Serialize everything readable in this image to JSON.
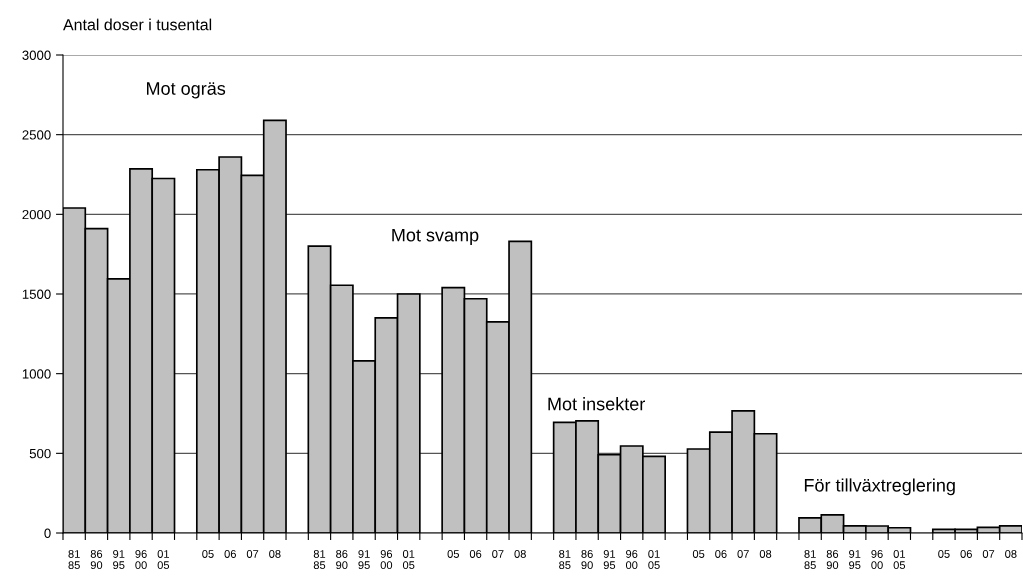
{
  "chart_data": {
    "type": "bar",
    "ylabel": "Antal doser i tusental",
    "categories": [
      "81\n85",
      "86\n90",
      "91\n95",
      "96\n00",
      "01\n05",
      null,
      "05",
      "06",
      "07",
      "08",
      null,
      "81\n85",
      "86\n90",
      "91\n95",
      "96\n00",
      "01\n05",
      null,
      "05",
      "06",
      "07",
      "08",
      null,
      "81\n85",
      "86\n90",
      "91\n95",
      "96\n00",
      "01\n05",
      null,
      "05",
      "06",
      "07",
      "08",
      null,
      "81\n85",
      "86\n90",
      "91\n95",
      "96\n00",
      "01\n05",
      null,
      "05",
      "06",
      "07",
      "08"
    ],
    "values": [
      2040,
      1910,
      1595,
      2285,
      2225,
      null,
      2280,
      2360,
      2245,
      2590,
      null,
      1800,
      1555,
      1080,
      1350,
      1500,
      null,
      1540,
      1470,
      1325,
      1830,
      null,
      694,
      704,
      491,
      546,
      481,
      null,
      527,
      633,
      766,
      623,
      null,
      95,
      114,
      45,
      44,
      33,
      null,
      23,
      23,
      35,
      45
    ],
    "color": "#c0c0c0",
    "ylim": [
      0,
      3000
    ],
    "yticks": [
      0,
      500,
      1000,
      1500,
      2000,
      2500,
      3000
    ],
    "grid": "y",
    "annotations": [
      "Mot ogräs",
      "Mot svamp",
      "Mot insekter",
      "För tillväxtreglering"
    ]
  }
}
